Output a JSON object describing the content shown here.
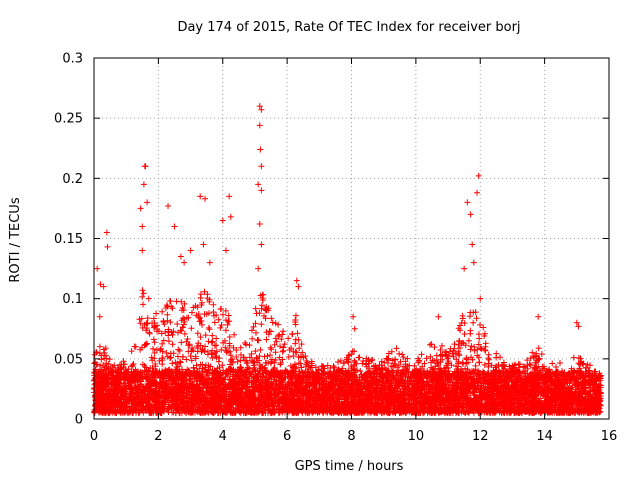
{
  "chart_data": {
    "type": "scatter",
    "title": "Day 174 of 2015, Rate Of TEC Index for receiver borj",
    "xlabel": "GPS time / hours",
    "ylabel": "ROTI / TECUs",
    "xlim": [
      0,
      16
    ],
    "ylim": [
      0,
      0.3
    ],
    "xticks": [
      0,
      2,
      4,
      6,
      8,
      10,
      12,
      14,
      16
    ],
    "yticks": [
      0,
      0.05,
      0.1,
      0.15,
      0.2,
      0.25,
      0.3
    ],
    "xtick_labels": [
      "0",
      "2",
      "4",
      "6",
      "8",
      "10",
      "12",
      "14",
      "16"
    ],
    "ytick_labels": [
      "0",
      "0.05",
      "0.1",
      "0.15",
      "0.2",
      "0.25",
      "0.3"
    ],
    "grid": true,
    "marker": "+",
    "color": "#ff0000",
    "x_extent_hours": [
      0,
      15.75
    ],
    "baseline_range": [
      0.005,
      0.04
    ],
    "series": [
      {
        "name": "ROTI",
        "notable_points": [
          {
            "x": 0.1,
            "y": 0.125
          },
          {
            "x": 0.2,
            "y": 0.112
          },
          {
            "x": 0.3,
            "y": 0.11
          },
          {
            "x": 0.4,
            "y": 0.155
          },
          {
            "x": 0.42,
            "y": 0.143
          },
          {
            "x": 0.18,
            "y": 0.085
          },
          {
            "x": 1.45,
            "y": 0.175
          },
          {
            "x": 1.5,
            "y": 0.16
          },
          {
            "x": 1.55,
            "y": 0.195
          },
          {
            "x": 1.58,
            "y": 0.21
          },
          {
            "x": 1.6,
            "y": 0.21
          },
          {
            "x": 1.65,
            "y": 0.18
          },
          {
            "x": 1.5,
            "y": 0.14
          },
          {
            "x": 1.7,
            "y": 0.1
          },
          {
            "x": 2.3,
            "y": 0.177
          },
          {
            "x": 2.5,
            "y": 0.16
          },
          {
            "x": 2.7,
            "y": 0.135
          },
          {
            "x": 2.8,
            "y": 0.13
          },
          {
            "x": 3.0,
            "y": 0.14
          },
          {
            "x": 3.3,
            "y": 0.185
          },
          {
            "x": 3.45,
            "y": 0.183
          },
          {
            "x": 3.4,
            "y": 0.145
          },
          {
            "x": 3.6,
            "y": 0.13
          },
          {
            "x": 4.0,
            "y": 0.165
          },
          {
            "x": 4.2,
            "y": 0.185
          },
          {
            "x": 4.25,
            "y": 0.168
          },
          {
            "x": 4.1,
            "y": 0.14
          },
          {
            "x": 5.15,
            "y": 0.26
          },
          {
            "x": 5.2,
            "y": 0.257
          },
          {
            "x": 5.15,
            "y": 0.244
          },
          {
            "x": 5.17,
            "y": 0.224
          },
          {
            "x": 5.2,
            "y": 0.21
          },
          {
            "x": 5.1,
            "y": 0.195
          },
          {
            "x": 5.2,
            "y": 0.19
          },
          {
            "x": 5.15,
            "y": 0.162
          },
          {
            "x": 5.2,
            "y": 0.145
          },
          {
            "x": 5.1,
            "y": 0.125
          },
          {
            "x": 6.3,
            "y": 0.115
          },
          {
            "x": 6.35,
            "y": 0.11
          },
          {
            "x": 8.05,
            "y": 0.085
          },
          {
            "x": 8.1,
            "y": 0.075
          },
          {
            "x": 10.7,
            "y": 0.085
          },
          {
            "x": 11.5,
            "y": 0.125
          },
          {
            "x": 11.6,
            "y": 0.18
          },
          {
            "x": 11.7,
            "y": 0.17
          },
          {
            "x": 11.75,
            "y": 0.145
          },
          {
            "x": 11.8,
            "y": 0.13
          },
          {
            "x": 11.9,
            "y": 0.188
          },
          {
            "x": 11.95,
            "y": 0.202
          },
          {
            "x": 12.0,
            "y": 0.1
          },
          {
            "x": 13.8,
            "y": 0.085
          },
          {
            "x": 15.0,
            "y": 0.08
          },
          {
            "x": 15.05,
            "y": 0.077
          }
        ]
      }
    ],
    "envelope": [
      {
        "x": 0.0,
        "y": 0.055
      },
      {
        "x": 0.3,
        "y": 0.065
      },
      {
        "x": 0.6,
        "y": 0.045
      },
      {
        "x": 1.0,
        "y": 0.05
      },
      {
        "x": 1.3,
        "y": 0.065
      },
      {
        "x": 1.5,
        "y": 0.11
      },
      {
        "x": 1.7,
        "y": 0.1
      },
      {
        "x": 2.0,
        "y": 0.085
      },
      {
        "x": 2.3,
        "y": 0.1
      },
      {
        "x": 2.6,
        "y": 0.11
      },
      {
        "x": 2.9,
        "y": 0.09
      },
      {
        "x": 3.2,
        "y": 0.1
      },
      {
        "x": 3.5,
        "y": 0.11
      },
      {
        "x": 3.8,
        "y": 0.09
      },
      {
        "x": 4.1,
        "y": 0.095
      },
      {
        "x": 4.5,
        "y": 0.06
      },
      {
        "x": 4.8,
        "y": 0.065
      },
      {
        "x": 5.1,
        "y": 0.11
      },
      {
        "x": 5.4,
        "y": 0.1
      },
      {
        "x": 5.7,
        "y": 0.085
      },
      {
        "x": 6.0,
        "y": 0.065
      },
      {
        "x": 6.3,
        "y": 0.09
      },
      {
        "x": 6.6,
        "y": 0.05
      },
      {
        "x": 7.0,
        "y": 0.045
      },
      {
        "x": 7.5,
        "y": 0.045
      },
      {
        "x": 8.0,
        "y": 0.06
      },
      {
        "x": 8.5,
        "y": 0.05
      },
      {
        "x": 9.0,
        "y": 0.055
      },
      {
        "x": 9.5,
        "y": 0.06
      },
      {
        "x": 10.0,
        "y": 0.05
      },
      {
        "x": 10.5,
        "y": 0.065
      },
      {
        "x": 11.0,
        "y": 0.06
      },
      {
        "x": 11.3,
        "y": 0.075
      },
      {
        "x": 11.6,
        "y": 0.1
      },
      {
        "x": 12.0,
        "y": 0.085
      },
      {
        "x": 12.3,
        "y": 0.06
      },
      {
        "x": 12.7,
        "y": 0.05
      },
      {
        "x": 13.0,
        "y": 0.045
      },
      {
        "x": 13.5,
        "y": 0.05
      },
      {
        "x": 13.8,
        "y": 0.065
      },
      {
        "x": 14.2,
        "y": 0.04
      },
      {
        "x": 14.6,
        "y": 0.04
      },
      {
        "x": 15.0,
        "y": 0.055
      },
      {
        "x": 15.4,
        "y": 0.045
      },
      {
        "x": 15.75,
        "y": 0.035
      }
    ]
  }
}
